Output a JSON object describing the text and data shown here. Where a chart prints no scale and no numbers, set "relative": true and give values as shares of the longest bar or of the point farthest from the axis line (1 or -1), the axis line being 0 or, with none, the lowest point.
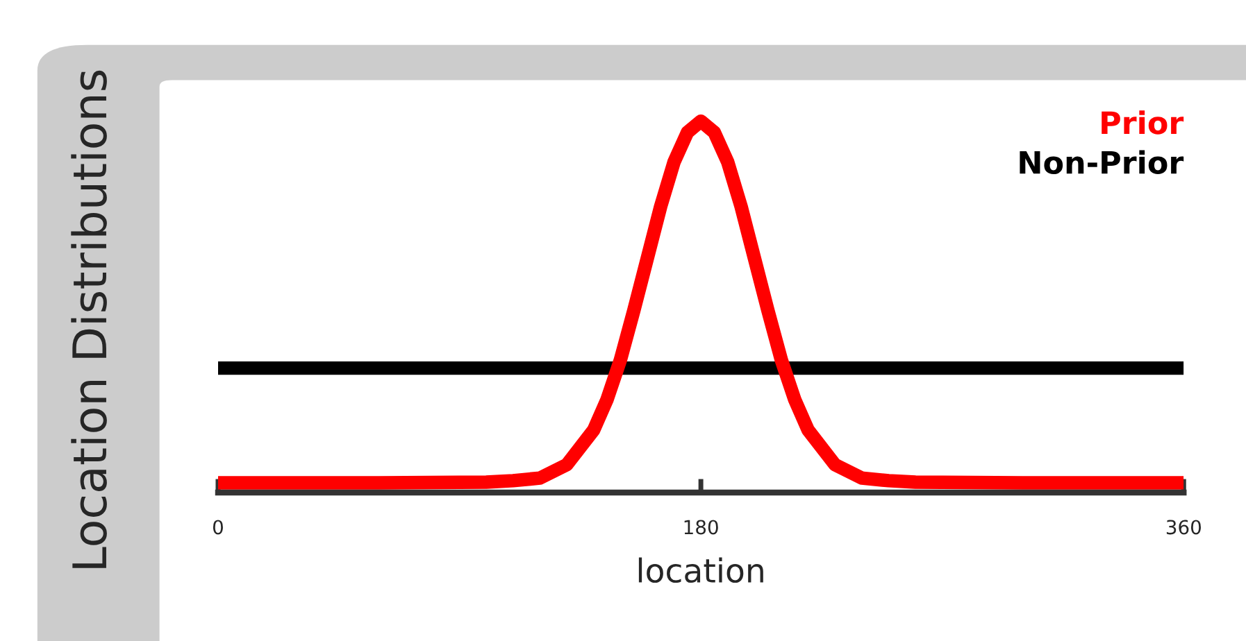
{
  "chart_data": {
    "type": "line",
    "relative": true,
    "xlabel": "location",
    "ylabel": "Location Distributions",
    "xlim": [
      0,
      360
    ],
    "xticks": [
      0,
      180,
      360
    ],
    "legend": "top right",
    "line_style": "solid",
    "marker": "none",
    "series": [
      {
        "name": "Prior",
        "color": "#ff0000",
        "x": [
          0,
          60,
          100,
          110,
          120,
          130,
          140,
          145,
          150,
          155,
          160,
          165,
          170,
          175,
          180,
          185,
          190,
          195,
          200,
          205,
          210,
          215,
          220,
          230,
          240,
          250,
          260,
          300,
          360
        ],
        "values": [
          0.026,
          0.026,
          0.028,
          0.032,
          0.039,
          0.075,
          0.168,
          0.25,
          0.357,
          0.49,
          0.63,
          0.77,
          0.89,
          0.97,
          1,
          0.97,
          0.89,
          0.77,
          0.63,
          0.49,
          0.357,
          0.25,
          0.168,
          0.075,
          0.039,
          0.032,
          0.028,
          0.026,
          0.026
        ]
      },
      {
        "name": "Non-Prior",
        "color": "#000000",
        "x": [
          0,
          360
        ],
        "values": [
          0.335,
          0.335
        ]
      }
    ]
  }
}
